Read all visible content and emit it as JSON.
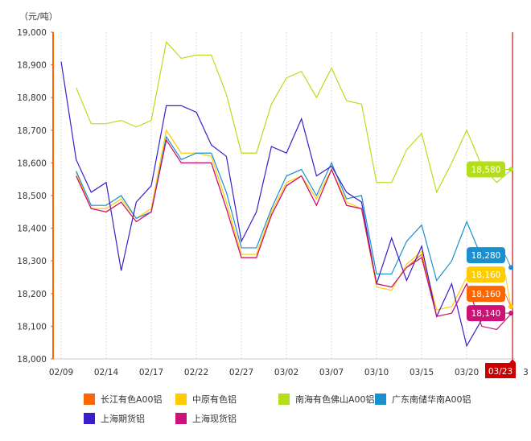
{
  "chart_data": {
    "type": "line",
    "unit_label": "（元/吨）",
    "ylim": [
      18000,
      19000
    ],
    "yticks": [
      "18,000",
      "18,100",
      "18,200",
      "18,300",
      "18,400",
      "18,500",
      "18,600",
      "18,700",
      "18,800",
      "18,900",
      "19,000"
    ],
    "xtick_labels": [
      "02/09",
      "02/14",
      "02/17",
      "02/22",
      "02/27",
      "03/02",
      "03/07",
      "03/10",
      "03/15",
      "03/20"
    ],
    "highlight_date": "03/23",
    "grid": "vertical dotted",
    "legend_placement": "bottom",
    "series": [
      {
        "name": "长江有色A00铝",
        "color": "#ff6600",
        "end_label": "18,160",
        "values": [
          null,
          18560,
          18460,
          18450,
          18480,
          18420,
          18450,
          18670,
          18600,
          18600,
          18600,
          18460,
          18310,
          18310,
          18440,
          18530,
          18560,
          18470,
          18580,
          18470,
          18460,
          18230,
          18220,
          18280,
          18320,
          18130,
          18140,
          18230,
          null,
          null,
          18160
        ]
      },
      {
        "name": "中原有色铝",
        "color": "#ffcc00",
        "end_label": "18,160",
        "values": [
          null,
          18570,
          18460,
          18460,
          18490,
          18430,
          18460,
          18700,
          18630,
          18630,
          18620,
          18480,
          18320,
          18320,
          18450,
          18540,
          18560,
          18490,
          18580,
          18480,
          18460,
          18220,
          18210,
          18290,
          18330,
          18150,
          18160,
          18250,
          null,
          null,
          18160
        ]
      },
      {
        "name": "南海有色佛山A00铝",
        "color": "#b5de1a",
        "end_label": "18,580",
        "values": [
          null,
          18830,
          18720,
          18720,
          18730,
          18710,
          18730,
          18970,
          18920,
          18930,
          18930,
          18810,
          18630,
          18630,
          18780,
          18860,
          18880,
          18800,
          18890,
          18790,
          18780,
          18540,
          18540,
          18640,
          18690,
          18510,
          18600,
          18700,
          18590,
          18540,
          18580
        ]
      },
      {
        "name": "广东南储华南A00铝",
        "color": "#1a8fcf",
        "end_label": "18,280",
        "values": [
          null,
          18575,
          18470,
          18470,
          18500,
          18430,
          18450,
          18680,
          18610,
          18630,
          18630,
          18510,
          18340,
          18340,
          18460,
          18560,
          18580,
          18500,
          18600,
          18490,
          18500,
          18260,
          18260,
          18360,
          18410,
          18240,
          18300,
          18420,
          18310,
          null,
          18280
        ]
      },
      {
        "name": "上海期货铝",
        "color": "#3a1fc8",
        "values": [
          18910,
          18610,
          18510,
          18540,
          18270,
          18480,
          18530,
          18775,
          18775,
          18755,
          18655,
          18620,
          18360,
          18450,
          18650,
          18630,
          18735,
          18560,
          18590,
          18510,
          18480,
          18230,
          18370,
          18240,
          18345,
          18130,
          18230,
          18040,
          18120,
          null,
          null
        ]
      },
      {
        "name": "上海现货铝",
        "color": "#cc1177",
        "end_label": "18,140",
        "values": [
          null,
          18560,
          18460,
          18450,
          18480,
          18420,
          18450,
          18670,
          18600,
          18600,
          18600,
          18460,
          18310,
          18310,
          18440,
          18530,
          18560,
          18470,
          18580,
          18470,
          18460,
          18230,
          18220,
          18280,
          18310,
          18130,
          18140,
          18230,
          18100,
          18090,
          18140
        ]
      }
    ]
  }
}
